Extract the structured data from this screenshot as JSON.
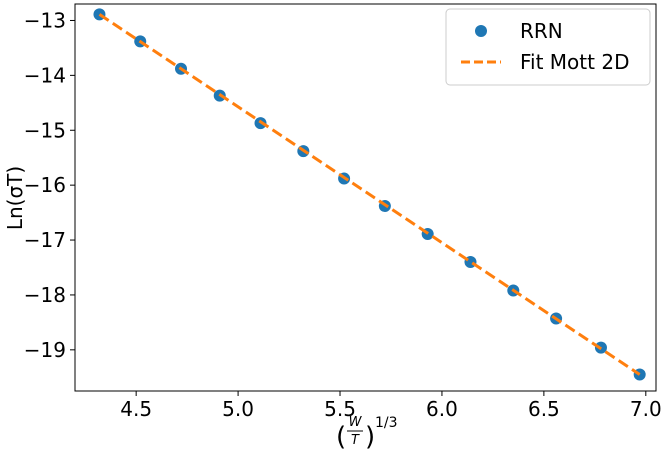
{
  "chart_data": {
    "type": "scatter",
    "xlabel": "(W/T)^1/3",
    "xlabel_parts": {
      "numerator": "W",
      "denominator": "T",
      "exponent": "1/3"
    },
    "ylabel": "Ln(σT)",
    "xlim": [
      4.2,
      7.05
    ],
    "ylim": [
      -19.75,
      -12.7
    ],
    "xticks": [
      4.5,
      5.0,
      5.5,
      6.0,
      6.5,
      7.0
    ],
    "xtick_labels": [
      "4.5",
      "5.0",
      "5.5",
      "6.0",
      "6.5",
      "7.0"
    ],
    "yticks": [
      -13,
      -14,
      -15,
      -16,
      -17,
      -18,
      -19
    ],
    "ytick_labels": [
      "−13",
      "−14",
      "−15",
      "−16",
      "−17",
      "−18",
      "−19"
    ],
    "grid": false,
    "legend_position": "top-right",
    "series": [
      {
        "name": "RRN",
        "kind": "scatter",
        "color": "#1f77b4",
        "x": [
          4.32,
          4.52,
          4.72,
          4.91,
          5.11,
          5.32,
          5.52,
          5.72,
          5.93,
          6.14,
          6.35,
          6.56,
          6.78,
          6.97
        ],
        "y": [
          -12.89,
          -13.38,
          -13.88,
          -14.37,
          -14.87,
          -15.38,
          -15.88,
          -16.38,
          -16.89,
          -17.4,
          -17.92,
          -18.43,
          -18.96,
          -19.45
        ]
      },
      {
        "name": "Fit Mott 2D",
        "kind": "line",
        "style": "dashed",
        "color": "#ff7f0e",
        "x": [
          4.32,
          6.97
        ],
        "y": [
          -12.89,
          -19.45
        ]
      }
    ]
  }
}
